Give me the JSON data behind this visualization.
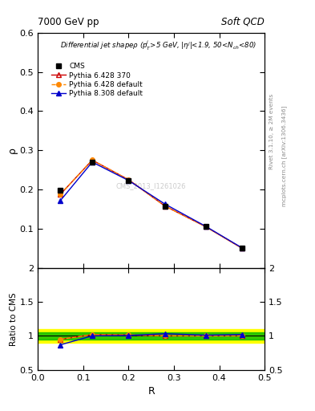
{
  "title_top": "7000 GeV pp",
  "title_right": "Soft QCD",
  "plot_title": "Differential jet shapeρ (p$_T^j$>5 GeV, |η$^j$|<1.9, 50<N$_{ch}$<80)",
  "xlabel": "R",
  "ylabel_main": "ρ",
  "ylabel_ratio": "Ratio to CMS",
  "right_label1": "Rivet 3.1.10, ≥ 2M events",
  "right_label2": "mcplots.cern.ch [arXiv:1306.3436]",
  "watermark": "CMS_2013_I1261026",
  "x_data": [
    0.05,
    0.12,
    0.2,
    0.28,
    0.37,
    0.45
  ],
  "cms_y": [
    0.198,
    0.27,
    0.222,
    0.158,
    0.105,
    0.05
  ],
  "pythia6_370_y": [
    0.188,
    0.275,
    0.225,
    0.158,
    0.105,
    0.05
  ],
  "pythia6_default_y": [
    0.188,
    0.275,
    0.225,
    0.158,
    0.105,
    0.05
  ],
  "pythia8_default_y": [
    0.172,
    0.27,
    0.223,
    0.163,
    0.106,
    0.051
  ],
  "ratio_p6_370": [
    0.95,
    1.018,
    1.013,
    1.0,
    1.0,
    1.0
  ],
  "ratio_p6_def": [
    0.95,
    1.018,
    1.013,
    1.0,
    1.0,
    1.0
  ],
  "ratio_p8_def": [
    0.869,
    1.0,
    1.005,
    1.032,
    1.01,
    1.02
  ],
  "band_yellow_lo": 0.9,
  "band_yellow_hi": 1.1,
  "band_green_lo": 0.95,
  "band_green_hi": 1.05,
  "ylim_main": [
    0.0,
    0.6
  ],
  "ylim_ratio": [
    0.5,
    2.0
  ],
  "yticks_main": [
    0.0,
    0.1,
    0.2,
    0.3,
    0.4,
    0.5,
    0.6
  ],
  "yticks_ratio": [
    0.5,
    1.0,
    1.5,
    2.0
  ],
  "xlim": [
    0.0,
    0.5
  ],
  "color_cms": "#000000",
  "color_p6_370": "#cc0000",
  "color_p6_def": "#ff8800",
  "color_p8_def": "#0000cc",
  "color_band_yellow": "#ffff00",
  "color_band_green": "#00bb00",
  "color_right_text": "#888888"
}
